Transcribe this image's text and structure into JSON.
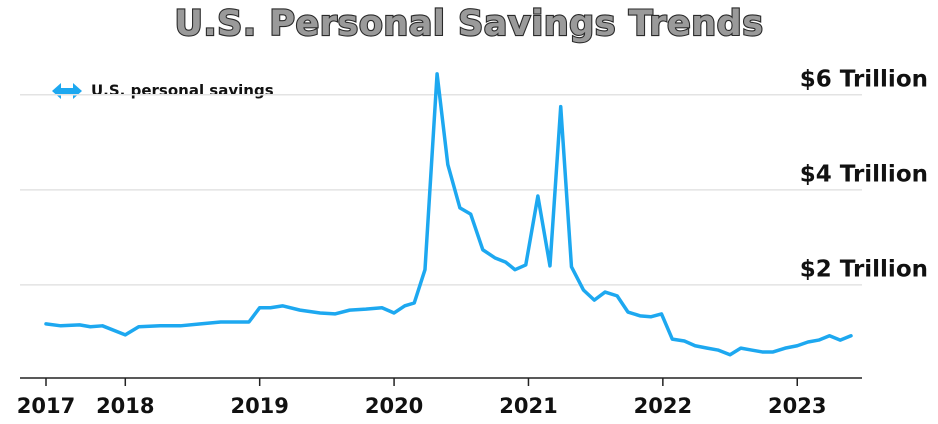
{
  "chart_data": {
    "type": "line",
    "title": "U.S. Personal Savings Trends",
    "x": [
      2017.41,
      2017.52,
      2017.66,
      2017.74,
      2017.83,
      2018.0,
      2018.1,
      2018.26,
      2018.41,
      2018.56,
      2018.71,
      2018.86,
      2018.92,
      2019.0,
      2019.08,
      2019.17,
      2019.3,
      2019.45,
      2019.56,
      2019.67,
      2019.79,
      2019.91,
      2020.0,
      2020.08,
      2020.15,
      2020.23,
      2020.32,
      2020.4,
      2020.49,
      2020.57,
      2020.66,
      2020.75,
      2020.83,
      2020.9,
      2020.98,
      2021.07,
      2021.16,
      2021.24,
      2021.32,
      2021.41,
      2021.49,
      2021.57,
      2021.66,
      2021.74,
      2021.83,
      2021.91,
      2021.99,
      2022.07,
      2022.16,
      2022.24,
      2022.33,
      2022.41,
      2022.5,
      2022.58,
      2022.66,
      2022.74,
      2022.82,
      2022.91,
      2023.0,
      2023.08,
      2023.16,
      2023.24,
      2023.32,
      2023.4
    ],
    "series": [
      {
        "name": "U.S. personal savings",
        "color": "#1da8f0",
        "values": [
          1.18,
          1.14,
          1.16,
          1.12,
          1.14,
          0.95,
          1.12,
          1.14,
          1.14,
          1.18,
          1.22,
          1.22,
          1.22,
          1.52,
          1.52,
          1.56,
          1.47,
          1.41,
          1.39,
          1.47,
          1.49,
          1.52,
          1.41,
          1.56,
          1.62,
          2.32,
          6.44,
          4.53,
          3.62,
          3.49,
          2.74,
          2.57,
          2.48,
          2.32,
          2.42,
          3.87,
          2.4,
          5.75,
          2.38,
          1.89,
          1.68,
          1.85,
          1.77,
          1.43,
          1.35,
          1.33,
          1.39,
          0.86,
          0.82,
          0.72,
          0.67,
          0.63,
          0.53,
          0.67,
          0.63,
          0.59,
          0.59,
          0.67,
          0.72,
          0.8,
          0.84,
          0.93,
          0.84,
          0.93
        ]
      }
    ],
    "xlim": [
      2017.41,
      2023.4
    ],
    "xticks": [
      {
        "value": 2017.41,
        "label": "2017"
      },
      2018,
      2019,
      2020,
      2021,
      2022,
      2023
    ],
    "ylim": [
      0,
      6.5
    ],
    "yticks": [
      {
        "value": 2,
        "label": "$2 Trillion"
      },
      {
        "value": 4,
        "label": "$4 Trillion"
      },
      {
        "value": 6,
        "label": "$6 Trillion"
      }
    ],
    "grid": true
  }
}
